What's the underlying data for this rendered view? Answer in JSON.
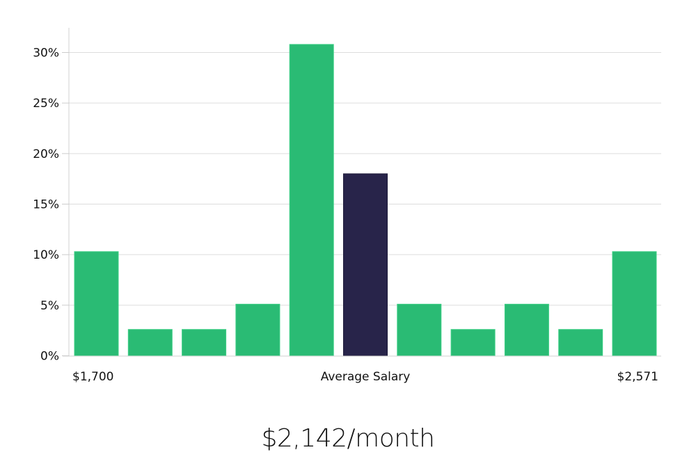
{
  "chart_data": {
    "type": "bar",
    "title": "",
    "xlabel": "Average Salary",
    "ylabel": "",
    "ylim": [
      0,
      32
    ],
    "yticks": [
      "0%",
      "5%",
      "10%",
      "15%",
      "20%",
      "25%",
      "30%"
    ],
    "ytick_values": [
      0,
      5,
      10,
      15,
      20,
      25,
      30
    ],
    "grid": true,
    "x_range_labels": {
      "min": "$1,700",
      "max": "$2,571"
    },
    "categories": [
      "bin1",
      "bin2",
      "bin3",
      "bin4",
      "bin5",
      "bin6",
      "bin7",
      "bin8",
      "bin9",
      "bin10",
      "bin11"
    ],
    "values": [
      10.3,
      2.6,
      2.6,
      5.1,
      30.8,
      18.0,
      5.1,
      2.6,
      5.1,
      2.6,
      10.3
    ],
    "highlight_index": 5,
    "colors": {
      "bar": "#2abb74",
      "highlight": "#28244a",
      "grid": "#dddddd",
      "axis": "#cccccc"
    }
  },
  "labels": {
    "x_min": "$1,700",
    "x_center": "Average Salary",
    "x_max": "$2,571",
    "salary": "$2,142/month"
  }
}
